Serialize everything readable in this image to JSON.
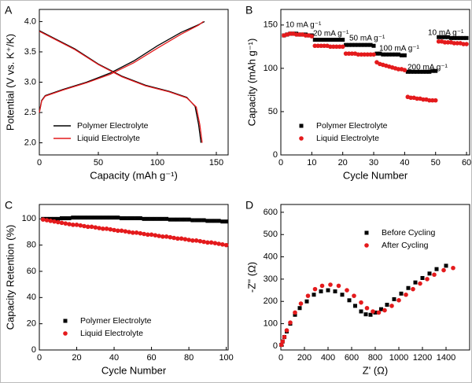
{
  "chart_data": [
    {
      "type": "line",
      "panel": "A",
      "x_label": "Capacity (mAh g⁻¹)",
      "y_label": "Potential (V vs. K⁺/K)",
      "xlim": [
        0,
        160
      ],
      "xticks": [
        0,
        50,
        100,
        150
      ],
      "ylim": [
        1.8,
        4.2
      ],
      "yticks": [
        {
          "value": 2,
          "label": "2.0"
        },
        2.5,
        {
          "value": 3,
          "label": "3.0"
        },
        3.5,
        {
          "value": 4,
          "label": "4.0"
        }
      ],
      "series": [
        {
          "name": "Polymer Electrolyte",
          "color": "#000000",
          "x": [
            0,
            2,
            5,
            20,
            40,
            60,
            80,
            100,
            120,
            135,
            140,
            null,
            0,
            10,
            30,
            50,
            70,
            90,
            110,
            125,
            132,
            135,
            137
          ],
          "values": [
            2.5,
            2.7,
            2.78,
            2.88,
            3.0,
            3.15,
            3.35,
            3.6,
            3.82,
            3.95,
            4.0,
            null,
            3.85,
            3.75,
            3.55,
            3.3,
            3.1,
            2.95,
            2.85,
            2.75,
            2.6,
            2.3,
            2.0
          ]
        },
        {
          "name": "Liquid Electrolyte",
          "color": "#e41a1c",
          "x": [
            0,
            2,
            5,
            20,
            40,
            60,
            80,
            100,
            120,
            135,
            139,
            null,
            0,
            10,
            30,
            50,
            70,
            90,
            110,
            125,
            133,
            136,
            138
          ],
          "values": [
            2.5,
            2.69,
            2.77,
            2.87,
            2.99,
            3.13,
            3.32,
            3.56,
            3.79,
            3.94,
            4.0,
            null,
            3.84,
            3.74,
            3.54,
            3.29,
            3.09,
            2.94,
            2.84,
            2.74,
            2.59,
            2.3,
            2.0
          ]
        }
      ]
    },
    {
      "type": "scatter",
      "panel": "B",
      "x_label": "Cycle Number",
      "y_label": "Capacity (mAh g⁻¹)",
      "xlim": [
        0,
        61
      ],
      "xticks": [
        0,
        10,
        20,
        30,
        40,
        50,
        60
      ],
      "ylim": [
        0,
        168
      ],
      "yticks": [
        0,
        50,
        100,
        150
      ],
      "annotations": [
        "10 mA g⁻¹",
        "20 mA g⁻¹",
        "50 mA g⁻¹",
        "100 mA g⁻¹",
        "200 mA g⁻¹",
        "10 mA g⁻¹"
      ],
      "x": [
        1,
        2,
        3,
        4,
        5,
        6,
        7,
        8,
        9,
        10,
        11,
        12,
        13,
        14,
        15,
        16,
        17,
        18,
        19,
        20,
        21,
        22,
        23,
        24,
        25,
        26,
        27,
        28,
        29,
        30,
        31,
        32,
        33,
        34,
        35,
        36,
        37,
        38,
        39,
        40,
        41,
        42,
        43,
        44,
        45,
        46,
        47,
        48,
        49,
        50,
        51,
        52,
        53,
        54,
        55,
        56,
        57,
        58,
        59,
        60
      ],
      "series": [
        {
          "name": "Polymer Electrolyte",
          "color": "#000000",
          "marker": "square",
          "values": [
            138,
            139,
            140,
            140,
            140,
            139,
            139,
            139,
            138,
            138,
            133,
            133,
            133,
            133,
            133,
            133,
            133,
            133,
            133,
            133,
            127,
            127,
            127,
            127,
            127,
            127,
            127,
            127,
            127,
            126,
            117,
            117,
            116,
            116,
            116,
            116,
            116,
            116,
            115,
            115,
            96,
            96,
            96,
            96,
            96,
            96,
            96,
            96,
            97,
            97,
            136,
            136,
            136,
            136,
            135,
            135,
            135,
            135,
            135,
            135
          ]
        },
        {
          "name": "Liquid Electrolyte",
          "color": "#e41a1c",
          "marker": "circle",
          "values": [
            138,
            139,
            140,
            140,
            139,
            139,
            139,
            138,
            138,
            137,
            126,
            126,
            126,
            126,
            126,
            125,
            125,
            125,
            125,
            125,
            117,
            117,
            117,
            117,
            116,
            116,
            116,
            116,
            116,
            116,
            107,
            105,
            104,
            103,
            102,
            101,
            100,
            99,
            99,
            98,
            67,
            66,
            66,
            65,
            65,
            64,
            64,
            63,
            63,
            63,
            131,
            131,
            130,
            130,
            130,
            129,
            129,
            129,
            128,
            128
          ]
        }
      ]
    },
    {
      "type": "scatter",
      "panel": "C",
      "x_label": "Cycle Number",
      "y_label": "Capacity Retention (%)",
      "xlim": [
        0,
        101
      ],
      "xticks": [
        0,
        20,
        40,
        60,
        80,
        100
      ],
      "ylim": [
        0,
        111
      ],
      "yticks": [
        0,
        20,
        40,
        60,
        80,
        100
      ],
      "x": [
        2,
        4,
        6,
        8,
        10,
        12,
        14,
        16,
        18,
        20,
        22,
        24,
        26,
        28,
        30,
        32,
        34,
        36,
        38,
        40,
        42,
        44,
        46,
        48,
        50,
        52,
        54,
        56,
        58,
        60,
        62,
        64,
        66,
        68,
        70,
        72,
        74,
        76,
        78,
        80,
        82,
        84,
        86,
        88,
        90,
        92,
        94,
        96,
        98,
        100
      ],
      "series": [
        {
          "name": "Polymer Electrolyte",
          "color": "#000000",
          "marker": "square",
          "values": [
            100,
            100,
            100,
            100,
            100,
            100.5,
            100.5,
            100.5,
            101,
            101,
            101,
            101,
            101,
            101,
            101,
            101,
            101,
            101,
            101,
            101,
            101,
            100.5,
            100.5,
            100.5,
            100.5,
            100.5,
            100.5,
            100,
            100,
            100,
            100,
            100,
            100,
            100,
            99.5,
            99.5,
            99.5,
            99.5,
            99.5,
            99.5,
            99,
            99,
            99,
            99,
            98.5,
            98.5,
            98.5,
            98.5,
            98,
            98
          ]
        },
        {
          "name": "Liquid Electrolyte",
          "color": "#e41a1c",
          "marker": "circle",
          "values": [
            99.5,
            99,
            98.5,
            98,
            97.5,
            97,
            96.5,
            96,
            95.5,
            95.5,
            95,
            94.5,
            94,
            94,
            93.5,
            93,
            92.5,
            92.5,
            92,
            91.5,
            91,
            91,
            90.5,
            90,
            89.5,
            89.5,
            89,
            88.5,
            88,
            88,
            87.5,
            87,
            86.5,
            86.5,
            86,
            85.5,
            85,
            85,
            84.5,
            84,
            83.5,
            83.5,
            83,
            82.5,
            82,
            82,
            81.5,
            81,
            80.5,
            80
          ]
        }
      ]
    },
    {
      "type": "scatter",
      "panel": "D",
      "x_label": "Z' (Ω)",
      "y_label": "-Z'' (Ω)",
      "xlim": [
        0,
        1600
      ],
      "xticks": [
        0,
        200,
        400,
        600,
        800,
        1000,
        1200,
        1400
      ],
      "ylim": [
        -18,
        635
      ],
      "yticks": [
        0,
        100,
        200,
        300,
        400,
        500,
        600
      ],
      "series": [
        {
          "name": "Before Cycling",
          "color": "#000000",
          "marker": "square",
          "x": [
            5,
            15,
            30,
            50,
            80,
            120,
            160,
            220,
            280,
            340,
            400,
            460,
            520,
            580,
            630,
            680,
            720,
            760,
            800,
            850,
            900,
            960,
            1020,
            1080,
            1140,
            1200,
            1260,
            1320,
            1400
          ],
          "values": [
            5,
            20,
            40,
            65,
            100,
            140,
            170,
            200,
            230,
            245,
            250,
            245,
            230,
            205,
            180,
            155,
            142,
            140,
            150,
            165,
            185,
            210,
            235,
            260,
            285,
            305,
            325,
            345,
            360
          ]
        },
        {
          "name": "After Cycling",
          "color": "#e41a1c",
          "marker": "circle",
          "x": [
            5,
            15,
            30,
            50,
            80,
            120,
            170,
            230,
            290,
            350,
            420,
            490,
            560,
            620,
            680,
            730,
            780,
            830,
            880,
            940,
            1000,
            1060,
            1120,
            1180,
            1240,
            1300,
            1380,
            1460
          ],
          "values": [
            5,
            20,
            40,
            70,
            105,
            150,
            190,
            225,
            255,
            270,
            275,
            270,
            250,
            225,
            195,
            170,
            155,
            150,
            160,
            180,
            205,
            230,
            255,
            280,
            300,
            320,
            340,
            350
          ]
        }
      ]
    }
  ]
}
